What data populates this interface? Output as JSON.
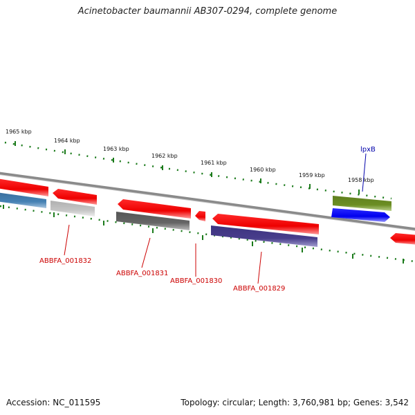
{
  "title": "Acinetobacter baumannii AB307-0294, complete genome",
  "footer": {
    "accession": "Accession: NC_011595",
    "info": "Topology: circular; Length: 3,760,981 bp; Genes: 3,542"
  },
  "ticks": [
    "1965 kbp",
    "1964 kbp",
    "1963 kbp",
    "1962 kbp",
    "1961 kbp",
    "1960 kbp",
    "1959 kbp",
    "1958 kbp"
  ],
  "gene_labels": [
    "ABBFA_001832",
    "ABBFA_001831",
    "ABBFA_001830",
    "ABBFA_001829",
    "lpxB"
  ],
  "colors": {
    "backbone": "#888888",
    "tick": "#1a7a1a",
    "forward_gene": "#ff0000",
    "label_red": "#cc0000",
    "label_blue": "#0000aa",
    "gene_blue": "#0000ff",
    "gene_olive": "#6b8e23",
    "gene_steel": "#4682b4",
    "gene_gray": "#666666",
    "gene_lightgray": "#c0c0c0",
    "gene_navy": "#483d8b"
  }
}
